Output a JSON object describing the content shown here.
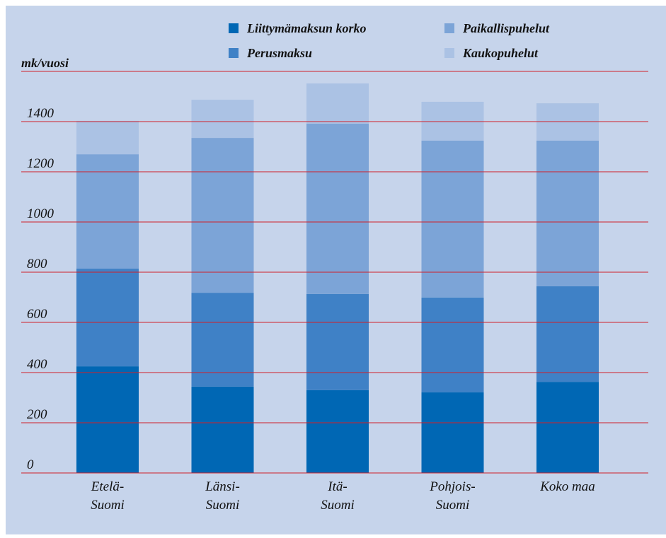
{
  "chart_data": {
    "type": "stacked_bar",
    "y_label": "mk/vuosi",
    "categories": [
      [
        "Etelä-",
        "Suomi"
      ],
      [
        "Länsi-",
        "Suomi"
      ],
      [
        "Itä-",
        "Suomi"
      ],
      [
        "Pohjois-",
        "Suomi"
      ],
      [
        "Koko maa"
      ]
    ],
    "series": [
      {
        "name": "Liittymämaksun korko",
        "color": "#0067b4",
        "values": [
          425,
          344,
          330,
          321,
          363
        ]
      },
      {
        "name": "Perusmaksu",
        "color": "#3f81c6",
        "values": [
          389,
          374,
          383,
          378,
          381
        ]
      },
      {
        "name": "Paikallispuhelut",
        "color": "#7ca4d7",
        "values": [
          456,
          617,
          679,
          625,
          580
        ]
      },
      {
        "name": "Kaukopuhelut",
        "color": "#abc2e4",
        "values": [
          133,
          152,
          160,
          155,
          149
        ]
      }
    ],
    "ylim": [
      0,
      1600
    ],
    "yticks": [
      0,
      200,
      400,
      600,
      800,
      1000,
      1200,
      1400
    ],
    "grid": true,
    "grid_color": "#d0202a"
  }
}
